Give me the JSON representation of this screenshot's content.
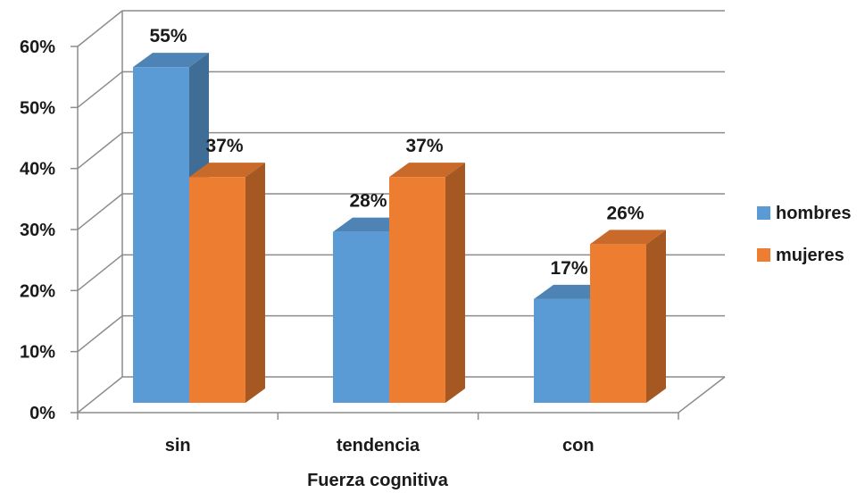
{
  "chart_data": {
    "type": "bar",
    "title": "",
    "xlabel": "Fuerza cognitiva",
    "ylabel": "",
    "categories": [
      "sin",
      "tendencia",
      "con"
    ],
    "series": [
      {
        "name": "hombres",
        "values": [
          55,
          28,
          17
        ],
        "labels": [
          "55%",
          "28%",
          "17%"
        ],
        "color": "#5B9BD5"
      },
      {
        "name": "mujeres",
        "values": [
          37,
          37,
          26
        ],
        "labels": [
          "37%",
          "37%",
          "26%"
        ],
        "color": "#ED7D31"
      }
    ],
    "ylim": [
      0,
      60
    ],
    "yticks": [
      0,
      10,
      20,
      30,
      40,
      50,
      60
    ],
    "ytick_labels": [
      "0%",
      "10%",
      "20%",
      "30%",
      "40%",
      "50%",
      "60%"
    ],
    "grid": true,
    "legend_position": "right",
    "style": "3d-clustered-column"
  }
}
